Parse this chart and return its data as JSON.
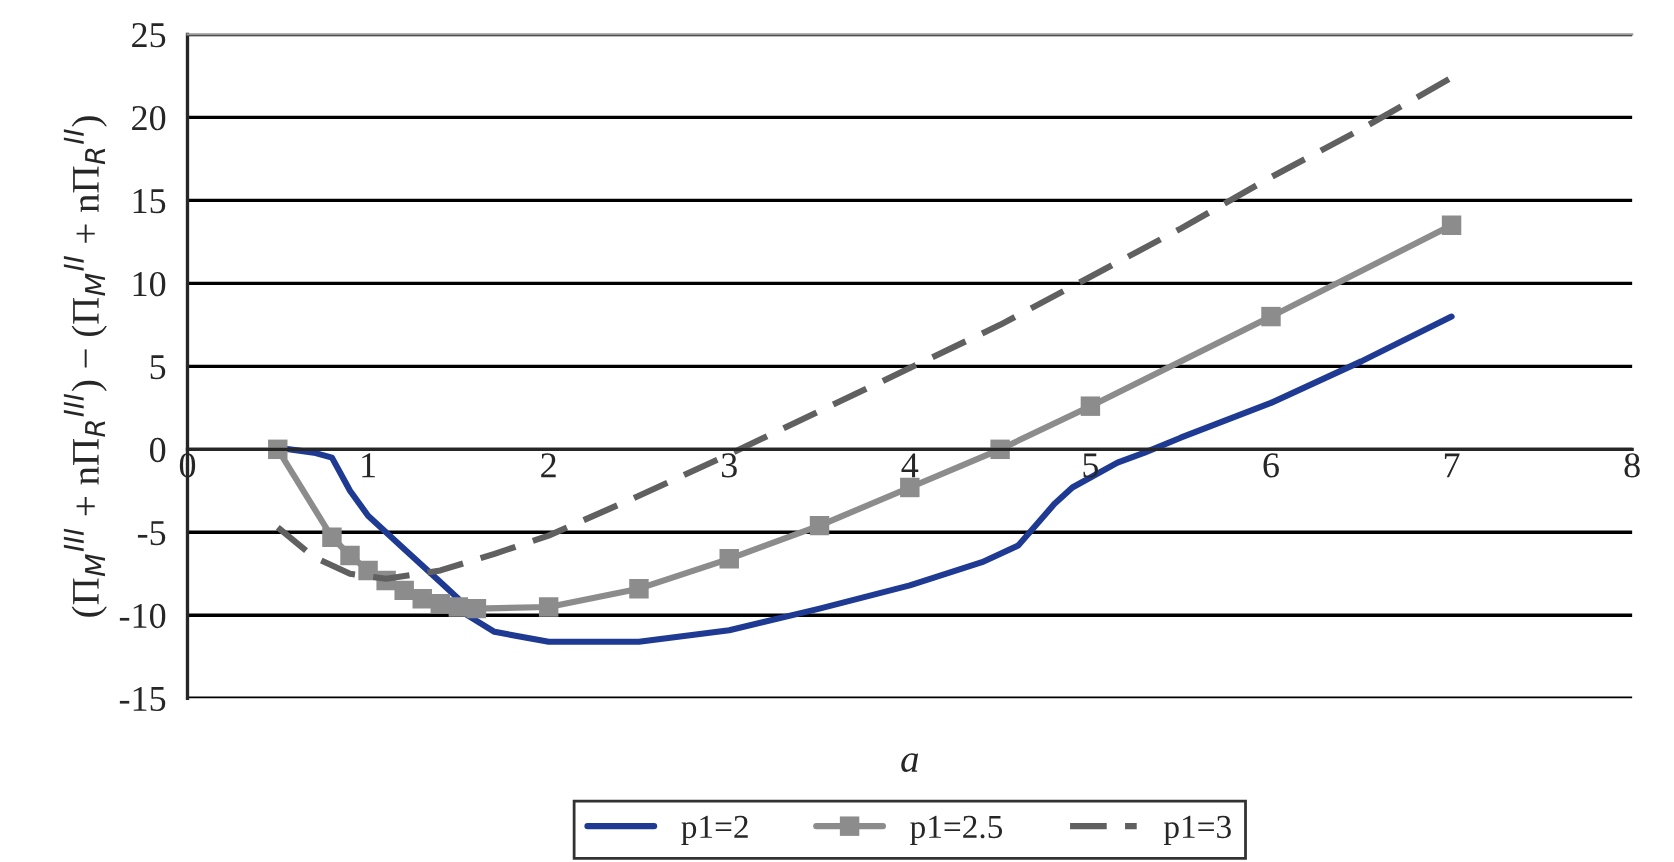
{
  "chart_data": {
    "type": "line",
    "xlabel": "a",
    "ylabel": "(Π$_{M}$$^{III}$ + nΠ$_{R}$$^{III}$) − (Π$_{M}$$^{II}$ + nΠ$_{R}$$^{II}$)",
    "xlim": [
      0,
      8
    ],
    "xticks": [
      0,
      1,
      2,
      3,
      4,
      5,
      6,
      7,
      8
    ],
    "ylim": [
      -15,
      25
    ],
    "yticks": [
      -15,
      -10,
      -5,
      0,
      5,
      10,
      15,
      20,
      25
    ],
    "grid": "y",
    "legend": "bottom",
    "series": [
      {
        "name": "p1=2",
        "color": "#1f3a93",
        "marker": "none",
        "line_style": "solid",
        "x": [
          0.5,
          0.7,
          0.8,
          0.9,
          1.0,
          1.2,
          1.4,
          1.5,
          1.55,
          1.7,
          2,
          2.5,
          3,
          3.5,
          4,
          4.4,
          4.6,
          4.8,
          4.9,
          5.15,
          5.3,
          5.5,
          6,
          6.5,
          7
        ],
        "values": [
          0.1,
          -0.2,
          -0.5,
          -2.5,
          -4,
          -6,
          -8,
          -9,
          -10,
          -11,
          -11.6,
          -11.6,
          -10.9,
          -9.6,
          -8.2,
          -6.8,
          -5.8,
          -3.3,
          -2.3,
          -0.8,
          -0.2,
          0.7,
          2.8,
          5.3,
          8
        ]
      },
      {
        "name": "p1=2.5",
        "color": "#8c8c8c",
        "marker": "square",
        "line_style": "solid",
        "x": [
          0.5,
          0.8,
          0.9,
          1.0,
          1.1,
          1.2,
          1.3,
          1.4,
          1.5,
          1.6,
          2,
          2.5,
          3,
          3.5,
          4,
          4.5,
          5,
          6,
          7
        ],
        "values": [
          0,
          -5.3,
          -6.4,
          -7.3,
          -7.9,
          -8.5,
          -9,
          -9.3,
          -9.5,
          -9.6,
          -9.5,
          -8.4,
          -6.6,
          -4.6,
          -2.3,
          0,
          2.6,
          8,
          13.5
        ]
      },
      {
        "name": "p1=3",
        "color": "#606060",
        "marker": "none",
        "line_style": "dashed",
        "x": [
          0.5,
          0.7,
          0.9,
          1.1,
          1.4,
          1.7,
          2,
          2.5,
          3,
          3.5,
          4,
          4.5,
          5,
          5.5,
          6,
          6.5,
          7
        ],
        "values": [
          -4.7,
          -6.5,
          -7.5,
          -7.8,
          -7.3,
          -6.3,
          -5.2,
          -2.8,
          -0.3,
          2.3,
          4.9,
          7.5,
          10.4,
          13.3,
          16.4,
          19.3,
          22.4
        ]
      }
    ]
  }
}
